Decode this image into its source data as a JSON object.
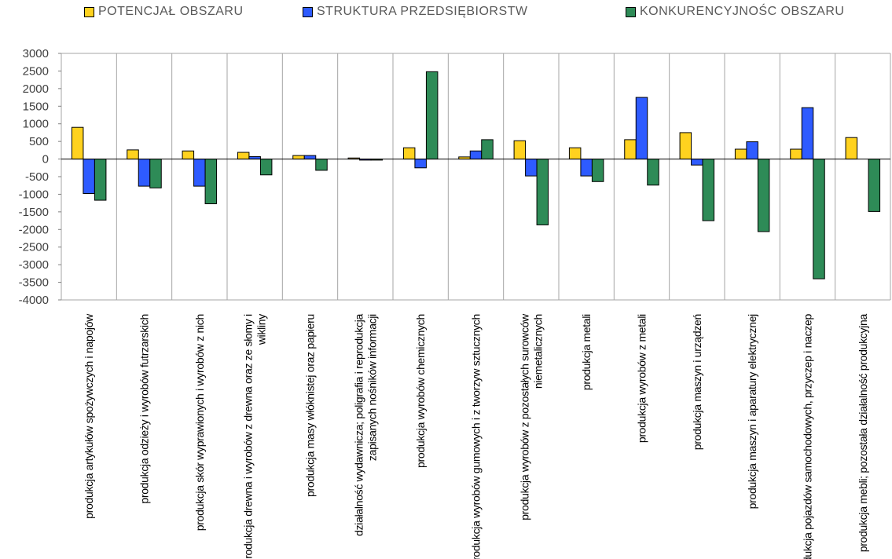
{
  "chart_data": {
    "type": "bar",
    "title": "",
    "xlabel": "",
    "ylabel": "",
    "ylim": [
      -4000,
      3000
    ],
    "ytick_step": 500,
    "grid": "vertical separators between categories",
    "legend_position": "top",
    "categories": [
      "produkcja artykułów spożywczych i napojów",
      "produkcja odzieży i wyrobów futrzarskich",
      "produkcja skór wyprawionych i wyrobów z nich",
      "produkcja drewna i wyrobów  z drewna oraz ze słomy i wikliny",
      "produkcja masy włóknistej oraz papieru",
      "działalność wydawnicza; poligrafia i reprodukcja zapisanych nośników informacji",
      "produkcja wyrobów chemicznych",
      "produkcja wyrobów gumowych i z tworzyw sztucznych",
      "produkcja wyrobów z pozostałych surowców niemetalicznych",
      "produkcja metali",
      "produkcja wyrobów z metali",
      "produkcja maszyn i urządzeń",
      "produkcja maszyn i aparatury elektrycznej",
      "produkcja pojazdów samochodowych, przyczep i naczep",
      "produkcja mebli; pozostała działalność produkcyjna"
    ],
    "series": [
      {
        "name": "POTENCJAŁ OBSZARU",
        "color": "#FFD21F",
        "values": [
          900,
          260,
          230,
          190,
          100,
          30,
          320,
          60,
          520,
          320,
          550,
          750,
          280,
          280,
          610
        ]
      },
      {
        "name": "STRUKTURA PRZEDSIĘBIORSTW",
        "color": "#2E5BFF",
        "values": [
          -980,
          -770,
          -770,
          70,
          100,
          -30,
          -250,
          230,
          -480,
          -480,
          1750,
          -170,
          490,
          1460,
          0
        ]
      },
      {
        "name": "KONKURENCYJNOŚC OBSZARU",
        "color": "#2E8B57",
        "values": [
          -1170,
          -820,
          -1270,
          -450,
          -320,
          -30,
          2480,
          550,
          -1870,
          -640,
          -740,
          -1750,
          -2060,
          -3400,
          -1490
        ]
      }
    ]
  }
}
